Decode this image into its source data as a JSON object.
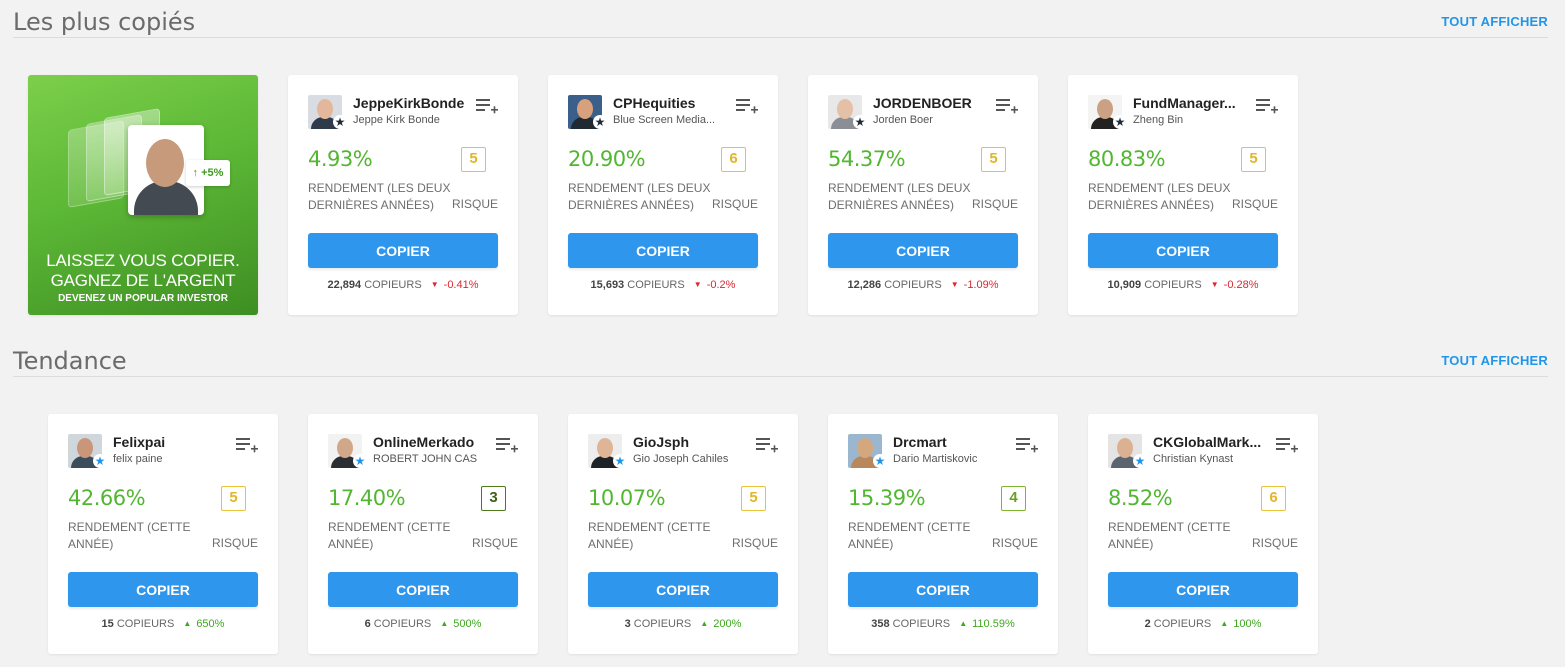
{
  "sections": [
    {
      "title": "Les plus copiés",
      "link": "TOUT AFFICHER",
      "promo": {
        "line1": "LAISSEZ VOUS COPIER.",
        "line2": "GAGNEZ DE L'ARGENT",
        "line3": "DEVENEZ UN POPULAR INVESTOR",
        "tag": "+5%"
      },
      "cards": [
        {
          "username": "JeppeKirkBonde",
          "fullname": "Jeppe Kirk Bonde",
          "gain": "4.93%",
          "risk": "5",
          "perf_label": "RENDEMENT (LES DEUX DERNIÈRES ANNÉES)",
          "risk_label": "RISQUE",
          "button": "COPIER",
          "copiers": "22,894",
          "copiers_label": "COPIEURS",
          "change": "-0.41%"
        },
        {
          "username": "CPHequities",
          "fullname": "Blue Screen Media...",
          "gain": "20.90%",
          "risk": "6",
          "perf_label": "RENDEMENT (LES DEUX DERNIÈRES ANNÉES)",
          "risk_label": "RISQUE",
          "button": "COPIER",
          "copiers": "15,693",
          "copiers_label": "COPIEURS",
          "change": "-0.2%"
        },
        {
          "username": "JORDENBOER",
          "fullname": "Jorden Boer",
          "gain": "54.37%",
          "risk": "5",
          "perf_label": "RENDEMENT (LES DEUX DERNIÈRES ANNÉES)",
          "risk_label": "RISQUE",
          "button": "COPIER",
          "copiers": "12,286",
          "copiers_label": "COPIEURS",
          "change": "-1.09%"
        },
        {
          "username": "FundManager...",
          "fullname": "Zheng Bin",
          "gain": "80.83%",
          "risk": "5",
          "perf_label": "RENDEMENT (LES DEUX DERNIÈRES ANNÉES)",
          "risk_label": "RISQUE",
          "button": "COPIER",
          "copiers": "10,909",
          "copiers_label": "COPIEURS",
          "change": "-0.28%"
        }
      ]
    },
    {
      "title": "Tendance",
      "link": "TOUT AFFICHER",
      "cards": [
        {
          "username": "Felixpai",
          "fullname": "felix paine",
          "gain": "42.66%",
          "risk": "5",
          "perf_label": "RENDEMENT (CETTE ANNÉE)",
          "risk_label": "RISQUE",
          "button": "COPIER",
          "copiers": "15",
          "copiers_label": "COPIEURS",
          "change": "650%"
        },
        {
          "username": "OnlineMerkado",
          "fullname": "ROBERT JOHN CAS",
          "gain": "17.40%",
          "risk": "3",
          "perf_label": "RENDEMENT (CETTE ANNÉE)",
          "risk_label": "RISQUE",
          "button": "COPIER",
          "copiers": "6",
          "copiers_label": "COPIEURS",
          "change": "500%"
        },
        {
          "username": "GioJsph",
          "fullname": "Gio Joseph Cahiles",
          "gain": "10.07%",
          "risk": "5",
          "perf_label": "RENDEMENT (CETTE ANNÉE)",
          "risk_label": "RISQUE",
          "button": "COPIER",
          "copiers": "3",
          "copiers_label": "COPIEURS",
          "change": "200%"
        },
        {
          "username": "Drcmart",
          "fullname": "Dario Martiskovic",
          "gain": "15.39%",
          "risk": "4",
          "perf_label": "RENDEMENT (CETTE ANNÉE)",
          "risk_label": "RISQUE",
          "button": "COPIER",
          "copiers": "358",
          "copiers_label": "COPIEURS",
          "change": "110.59%"
        },
        {
          "username": "CKGlobalMark...",
          "fullname": "Christian Kynast",
          "gain": "8.52%",
          "risk": "6",
          "perf_label": "RENDEMENT (CETTE ANNÉE)",
          "risk_label": "RISQUE",
          "button": "COPIER",
          "copiers": "2",
          "copiers_label": "COPIEURS",
          "change": "100%"
        }
      ]
    }
  ],
  "colors": {
    "accent": "#2f96ee",
    "gain": "#53b632",
    "negative": "#d9282f",
    "positive": "#3ea81f",
    "risk_yellow": "#e8c33a",
    "risk_green": "#7fb630",
    "risk_dark": "#4f7a1c"
  },
  "icons": {
    "watchlist": "watchlist-add-icon",
    "popular_investor_badge": "star-badge-icon",
    "change_down": "triangle-down-icon",
    "change_up": "triangle-up-icon"
  }
}
